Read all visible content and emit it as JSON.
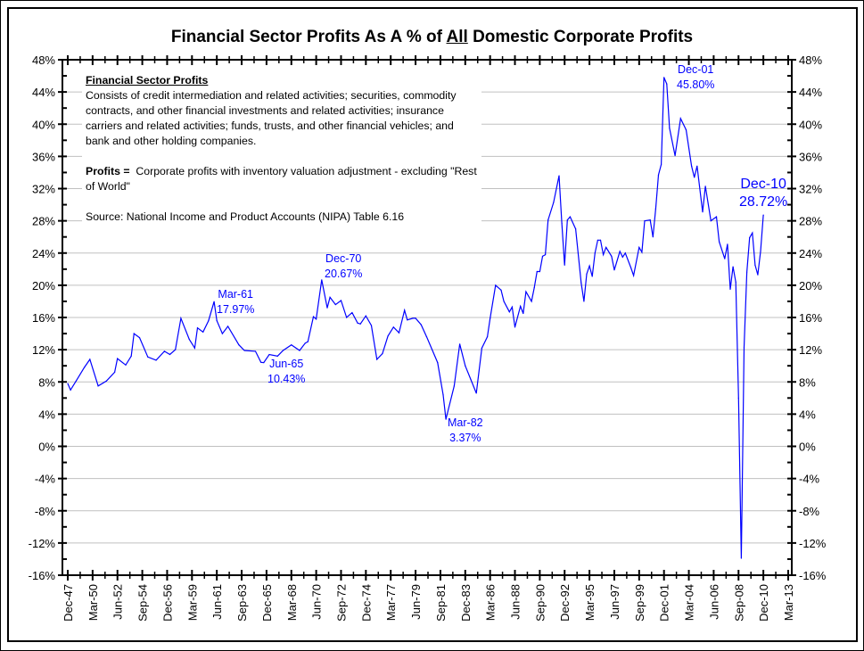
{
  "title": {
    "pre": "Financial Sector Profits As A % of ",
    "emph": "All",
    "post": " Domestic Corporate Profits"
  },
  "note": {
    "heading": "Financial Sector Profits",
    "description": "Consists of credit intermediation and related activities; securities, commodity contracts, and other financial investments and related activities; insurance carriers and related activities; funds, trusts, and other financial vehicles; and bank and other holding companies.",
    "profits_label": "Profits =",
    "profits_text": "Corporate profits with inventory valuation adjustment - excluding \"Rest of World\"",
    "source": "Source:  National Income and Product Accounts (NIPA) Table 6.16"
  },
  "annotations": [
    {
      "date": "Mar-61",
      "value": "17.97%"
    },
    {
      "date": "Jun-65",
      "value": "10.43%"
    },
    {
      "date": "Dec-70",
      "value": "20.67%"
    },
    {
      "date": "Mar-82",
      "value": "3.37%"
    },
    {
      "date": "Dec-01",
      "value": "45.80%"
    },
    {
      "date": "Dec-10",
      "value": "28.72%"
    }
  ],
  "chart_data": {
    "type": "line",
    "title": "Financial Sector Profits As A % of All Domestic Corporate Profits",
    "xlabel": "",
    "ylabel": "",
    "ylim": [
      -16,
      48
    ],
    "xlim": [
      "1947-12",
      "2013-03"
    ],
    "y_ticks": [
      "48%",
      "44%",
      "40%",
      "36%",
      "32%",
      "28%",
      "24%",
      "20%",
      "16%",
      "12%",
      "8%",
      "4%",
      "0%",
      "-4%",
      "-8%",
      "-12%",
      "-16%"
    ],
    "x_ticks": [
      "Dec-47",
      "Mar-50",
      "Jun-52",
      "Sep-54",
      "Dec-56",
      "Mar-59",
      "Jun-61",
      "Sep-63",
      "Dec-65",
      "Mar-68",
      "Jun-70",
      "Sep-72",
      "Dec-74",
      "Mar-77",
      "Jun-79",
      "Sep-81",
      "Dec-83",
      "Mar-86",
      "Jun-88",
      "Sep-90",
      "Dec-92",
      "Mar-95",
      "Jun-97",
      "Sep-99",
      "Dec-01",
      "Mar-04",
      "Jun-06",
      "Sep-08",
      "Dec-10",
      "Mar-13"
    ],
    "grid": true,
    "secondary_y_axis": true,
    "line_color": "#0000ff",
    "x": [
      "1947-12",
      "1948-03",
      "1948-09",
      "1949-06",
      "1949-12",
      "1950-09",
      "1951-06",
      "1952-03",
      "1952-06",
      "1953-03",
      "1953-09",
      "1953-12",
      "1954-06",
      "1955-03",
      "1955-12",
      "1956-09",
      "1957-03",
      "1957-09",
      "1958-03",
      "1958-12",
      "1959-06",
      "1959-09",
      "1960-03",
      "1960-09",
      "1961-03",
      "1961-06",
      "1961-12",
      "1962-06",
      "1963-06",
      "1963-12",
      "1964-12",
      "1965-06",
      "1965-09",
      "1966-03",
      "1966-12",
      "1967-06",
      "1968-03",
      "1968-12",
      "1969-06",
      "1969-09",
      "1970-03",
      "1970-06",
      "1970-12",
      "1971-06",
      "1971-09",
      "1972-03",
      "1972-09",
      "1973-03",
      "1973-09",
      "1974-03",
      "1974-06",
      "1974-12",
      "1975-06",
      "1975-12",
      "1976-06",
      "1976-12",
      "1977-06",
      "1977-12",
      "1978-06",
      "1978-09",
      "1979-03",
      "1979-06",
      "1979-12",
      "1980-06",
      "1981-06",
      "1981-12",
      "1982-03",
      "1982-12",
      "1983-06",
      "1983-12",
      "1984-06",
      "1984-12",
      "1985-06",
      "1985-12",
      "1986-03",
      "1986-09",
      "1987-03",
      "1987-06",
      "1987-12",
      "1988-03",
      "1988-06",
      "1988-12",
      "1989-03",
      "1989-06",
      "1989-12",
      "1990-03",
      "1990-06",
      "1990-09",
      "1990-12",
      "1991-03",
      "1991-06",
      "1991-12",
      "1992-06",
      "1992-09",
      "1992-12",
      "1993-03",
      "1993-06",
      "1993-12",
      "1994-06",
      "1994-09",
      "1994-12",
      "1995-03",
      "1995-06",
      "1995-09",
      "1995-12",
      "1996-03",
      "1996-06",
      "1996-09",
      "1997-03",
      "1997-06",
      "1997-12",
      "1998-03",
      "1998-06",
      "1998-12",
      "1999-03",
      "1999-09",
      "1999-12",
      "2000-03",
      "2000-09",
      "2000-12",
      "2001-03",
      "2001-06",
      "2001-09",
      "2001-12",
      "2002-03",
      "2002-06",
      "2002-12",
      "2003-06",
      "2003-12",
      "2004-06",
      "2004-09",
      "2004-12",
      "2005-06",
      "2005-09",
      "2006-03",
      "2006-09",
      "2006-12",
      "2007-06",
      "2007-09",
      "2007-12",
      "2008-03",
      "2008-06",
      "2008-09",
      "2008-12",
      "2009-03",
      "2009-06",
      "2009-09",
      "2009-12",
      "2010-03",
      "2010-06",
      "2010-09",
      "2010-12"
    ],
    "values": [
      7.8,
      7.0,
      8.1,
      9.8,
      10.8,
      7.5,
      8.1,
      9.2,
      10.9,
      10.1,
      11.2,
      14.0,
      13.5,
      11.1,
      10.7,
      11.8,
      11.4,
      12.0,
      15.9,
      13.3,
      12.2,
      14.7,
      14.2,
      15.6,
      17.97,
      15.6,
      14.0,
      14.9,
      12.6,
      11.9,
      11.8,
      10.43,
      10.4,
      11.4,
      11.2,
      11.9,
      12.6,
      11.9,
      12.8,
      13.0,
      16.1,
      15.8,
      20.67,
      17.2,
      18.5,
      17.6,
      18.1,
      16.0,
      16.6,
      15.3,
      15.2,
      16.2,
      15.0,
      10.8,
      11.5,
      13.7,
      14.8,
      14.1,
      16.9,
      15.7,
      15.9,
      15.9,
      15.1,
      13.6,
      10.4,
      6.4,
      3.37,
      7.5,
      12.7,
      10.0,
      8.3,
      6.6,
      12.2,
      13.6,
      15.9,
      20.0,
      19.4,
      18.0,
      16.7,
      17.3,
      14.8,
      17.4,
      16.5,
      19.2,
      18.0,
      19.7,
      21.7,
      21.7,
      23.6,
      23.8,
      28.1,
      30.3,
      33.6,
      27.7,
      22.5,
      28.1,
      28.5,
      27.0,
      20.3,
      18.0,
      21.4,
      22.4,
      21.1,
      24.0,
      25.6,
      25.6,
      23.8,
      24.7,
      23.6,
      21.9,
      24.2,
      23.5,
      24.0,
      22.2,
      21.2,
      24.7,
      24.1,
      28.0,
      28.1,
      26.0,
      29.5,
      33.7,
      35.0,
      45.8,
      45.0,
      39.5,
      36.1,
      40.7,
      39.3,
      34.8,
      33.4,
      34.8,
      29.1,
      32.3,
      28.0,
      28.5,
      25.4,
      23.3,
      25.1,
      19.5,
      22.3,
      20.4,
      6.0,
      -13.9,
      12.3,
      21.6,
      25.9,
      26.5,
      22.5,
      21.3,
      24.2,
      28.72
    ]
  }
}
